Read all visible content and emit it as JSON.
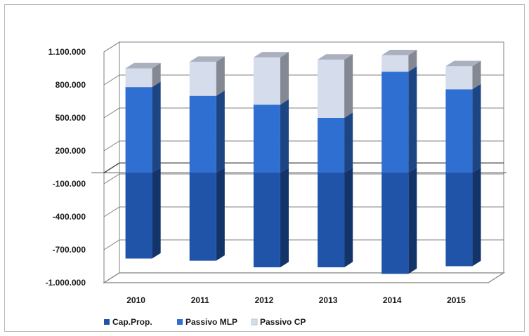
{
  "chart_data": {
    "type": "bar",
    "stacked": true,
    "three_d": true,
    "categories": [
      "2010",
      "2011",
      "2012",
      "2013",
      "2014",
      "2015"
    ],
    "series": [
      {
        "name": "Cap.Prop.",
        "color": "#1f54a8",
        "values": [
          -780000,
          -800000,
          -860000,
          -860000,
          -920000,
          -850000
        ]
      },
      {
        "name": "Passivo MLP",
        "color": "#2f6fd1",
        "values": [
          780000,
          700000,
          620000,
          500000,
          920000,
          760000
        ]
      },
      {
        "name": "Passivo CP",
        "color": "#d5dcec",
        "values": [
          170000,
          310000,
          430000,
          530000,
          150000,
          210000
        ]
      }
    ],
    "y_ticks": [
      "1.100.000",
      "800.000",
      "500.000",
      "200.000",
      "-100.000",
      "-400.000",
      "-700.000",
      "-1.000.000"
    ],
    "ylim": [
      -1000000,
      1100000
    ],
    "grid": true,
    "legend_position": "bottom-left",
    "title": "",
    "xlabel": "",
    "ylabel": ""
  }
}
